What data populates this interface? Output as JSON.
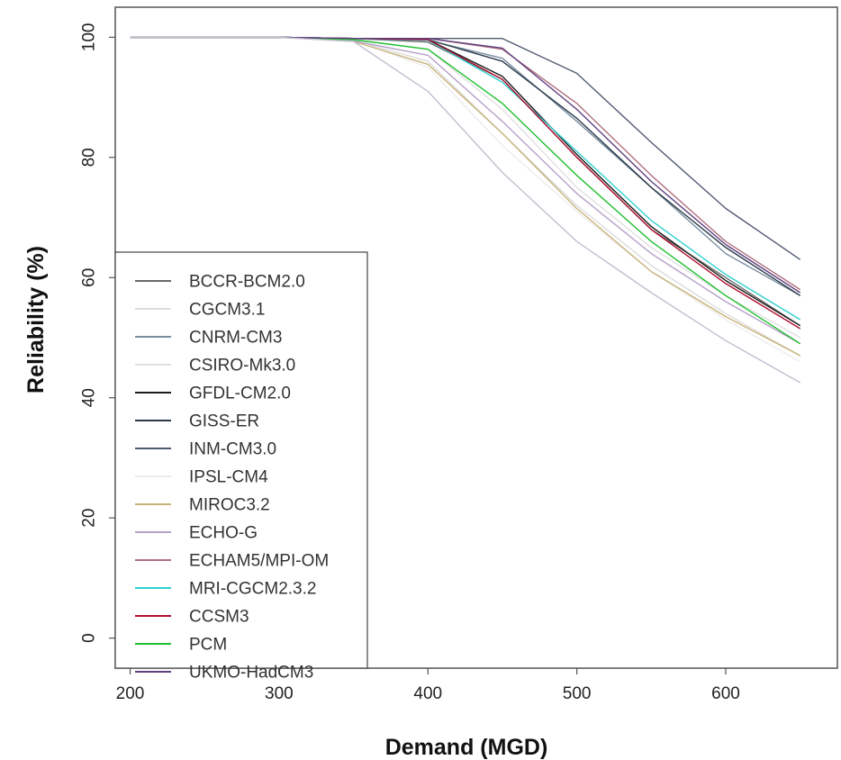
{
  "chart_data": {
    "type": "line",
    "title": "",
    "xlabel": "Demand (MGD)",
    "ylabel": "Reliability (%)",
    "xlim": [
      190,
      675
    ],
    "ylim": [
      -5,
      105
    ],
    "xticks": [
      200,
      300,
      400,
      500,
      600
    ],
    "yticks": [
      0,
      20,
      40,
      60,
      80,
      100
    ],
    "grid": false,
    "legend_position": "bottom-left",
    "x": [
      200,
      250,
      300,
      350,
      400,
      450,
      500,
      550,
      600,
      650
    ],
    "series": [
      {
        "name": "BCCR-BCM2.0",
        "color": "#6a6a6a",
        "values": [
          100,
          100,
          100,
          99.8,
          99.2,
          93,
          80,
          68,
          60,
          52
        ]
      },
      {
        "name": "CGCM3.1",
        "color": "#dcdcdc",
        "values": [
          100,
          100,
          100,
          99.5,
          96,
          84,
          72,
          62,
          54,
          47
        ]
      },
      {
        "name": "CNRM-CM3",
        "color": "#7a8ea0",
        "values": [
          100,
          100,
          100,
          99.8,
          99.5,
          96.5,
          86,
          75,
          64,
          57
        ]
      },
      {
        "name": "CSIRO-Mk3.0",
        "color": "#e0e0e0",
        "values": [
          100,
          100,
          100,
          99.6,
          98,
          88,
          75,
          65,
          57,
          50
        ]
      },
      {
        "name": "GFDL-CM2.0",
        "color": "#1a1a1a",
        "values": [
          100,
          100,
          100,
          99.8,
          99.6,
          93.5,
          80.5,
          68.5,
          59.5,
          52
        ]
      },
      {
        "name": "GISS-ER",
        "color": "#2a3a4a",
        "values": [
          100,
          100,
          100,
          99.8,
          99.6,
          96,
          86.5,
          75,
          65,
          57
        ]
      },
      {
        "name": "INM-CM3.0",
        "color": "#505a70",
        "values": [
          100,
          100,
          100,
          99.8,
          99.8,
          99.8,
          94,
          82.5,
          71.5,
          63
        ]
      },
      {
        "name": "IPSL-CM4",
        "color": "#ececec",
        "values": [
          100,
          100,
          100,
          99.5,
          95,
          82,
          71,
          61,
          53,
          46
        ]
      },
      {
        "name": "MIROC3.2",
        "color": "#c8b47a",
        "values": [
          100,
          100,
          100,
          99.3,
          95.5,
          84,
          71.5,
          61,
          53.5,
          47
        ]
      },
      {
        "name": "ECHO-G",
        "color": "#b6a0c8",
        "values": [
          100,
          100,
          100,
          99.4,
          97,
          86,
          74,
          64,
          56,
          49
        ]
      },
      {
        "name": "ECHAM5/MPI-OM",
        "color": "#b07080",
        "values": [
          100,
          100,
          100,
          99.8,
          99.8,
          98,
          89,
          77,
          66,
          58
        ]
      },
      {
        "name": "MRI-CGCM2.3.2",
        "color": "#30d0d0",
        "values": [
          100,
          100,
          100,
          99.8,
          99.5,
          92.5,
          81,
          69.5,
          60.5,
          53
        ]
      },
      {
        "name": "CCSM3",
        "color": "#b01030",
        "values": [
          100,
          100,
          100,
          99.8,
          99.6,
          93,
          80,
          68,
          59,
          51.5
        ]
      },
      {
        "name": "PCM",
        "color": "#20c030",
        "values": [
          100,
          100,
          100,
          99.6,
          98,
          89,
          77,
          66,
          57,
          49
        ]
      },
      {
        "name": "UKMO-HadCM3",
        "color": "#604080",
        "values": [
          100,
          100,
          100,
          99.8,
          99.8,
          98.2,
          88,
          76,
          65.5,
          57.5
        ]
      },
      {
        "name": "",
        "color": "#c0c0d0",
        "values": [
          100,
          100,
          100,
          99.3,
          91,
          77.5,
          66,
          57.5,
          49.5,
          42.5
        ]
      }
    ]
  }
}
